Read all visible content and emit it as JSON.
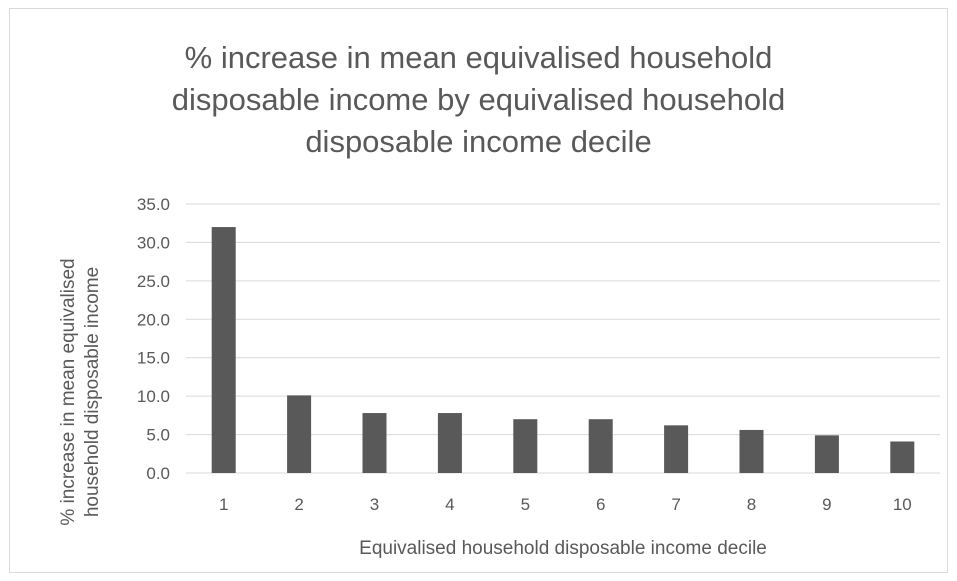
{
  "chart_data": {
    "type": "bar",
    "title_lines": [
      "% increase in mean equivalised household",
      "disposable income by equivalised household",
      "disposable income decile"
    ],
    "xlabel": "Equivalised household disposable income decile",
    "ylabel_lines": [
      "% increase in mean equivalised",
      "household disposable income"
    ],
    "categories": [
      "1",
      "2",
      "3",
      "4",
      "5",
      "6",
      "7",
      "8",
      "9",
      "10"
    ],
    "values": [
      32.0,
      10.1,
      7.8,
      7.8,
      7.0,
      7.0,
      6.2,
      5.6,
      4.9,
      4.1
    ],
    "ylim": [
      0,
      35
    ],
    "yticks": [
      "0.0",
      "5.0",
      "10.0",
      "15.0",
      "20.0",
      "25.0",
      "30.0",
      "35.0"
    ],
    "grid": true,
    "legend": false,
    "bar_color": "#595959",
    "grid_color": "#d9d9d9"
  }
}
